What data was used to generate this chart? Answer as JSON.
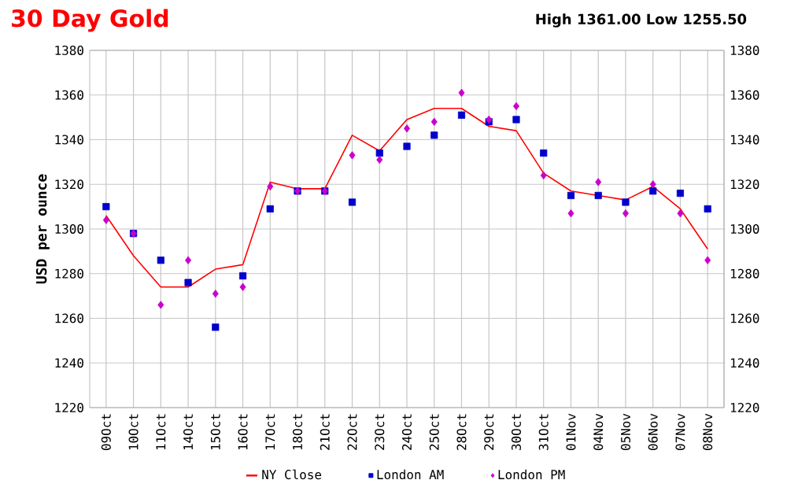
{
  "chart_data": {
    "type": "line",
    "title": "30 Day Gold",
    "subtitle": "High 1361.00 Low 1255.50",
    "ylabel": "USD per ounce",
    "categories": [
      "09Oct",
      "10Oct",
      "11Oct",
      "14Oct",
      "15Oct",
      "16Oct",
      "17Oct",
      "18Oct",
      "21Oct",
      "22Oct",
      "23Oct",
      "24Oct",
      "25Oct",
      "28Oct",
      "29Oct",
      "30Oct",
      "31Oct",
      "01Nov",
      "04Nov",
      "05Nov",
      "06Nov",
      "07Nov",
      "08Nov"
    ],
    "series": [
      {
        "name": "NY Close",
        "color": "#ff0000",
        "marker": "none",
        "line_style": "solid",
        "values": [
          1306,
          1288,
          1274,
          1274,
          1282,
          1284,
          1321,
          1318,
          1318,
          1342,
          1335,
          1349,
          1354,
          1354,
          1346,
          1344,
          1325,
          1317,
          1315,
          1313,
          1319,
          1309,
          1291
        ]
      },
      {
        "name": "London AM",
        "type": "scatter",
        "color": "#0000cc",
        "marker": "square",
        "values": [
          1310,
          1298,
          1286,
          1276,
          1256,
          1279,
          1309,
          1317,
          1317,
          1312,
          1334,
          1337,
          1342,
          1351,
          1348,
          1349,
          1334,
          1315,
          1315,
          1312,
          1317,
          1316,
          1309
        ]
      },
      {
        "name": "London PM",
        "type": "scatter",
        "color": "#cc00cc",
        "marker": "diamond",
        "values": [
          1304,
          1298,
          1266,
          1286,
          1271,
          1274,
          1319,
          1317,
          1317,
          1333,
          1331,
          1345,
          1348,
          1361,
          1349,
          1355,
          1324,
          1307,
          1321,
          1307,
          1320,
          1307,
          1286
        ]
      }
    ],
    "ylim": [
      1220,
      1380
    ],
    "yticks": [
      1220,
      1240,
      1260,
      1280,
      1300,
      1320,
      1340,
      1360,
      1380
    ],
    "y2lim": [
      1220,
      1380
    ],
    "y2ticks": [
      1220,
      1240,
      1260,
      1280,
      1300,
      1320,
      1340,
      1360,
      1380
    ],
    "grid": true,
    "legend": "bottom"
  }
}
